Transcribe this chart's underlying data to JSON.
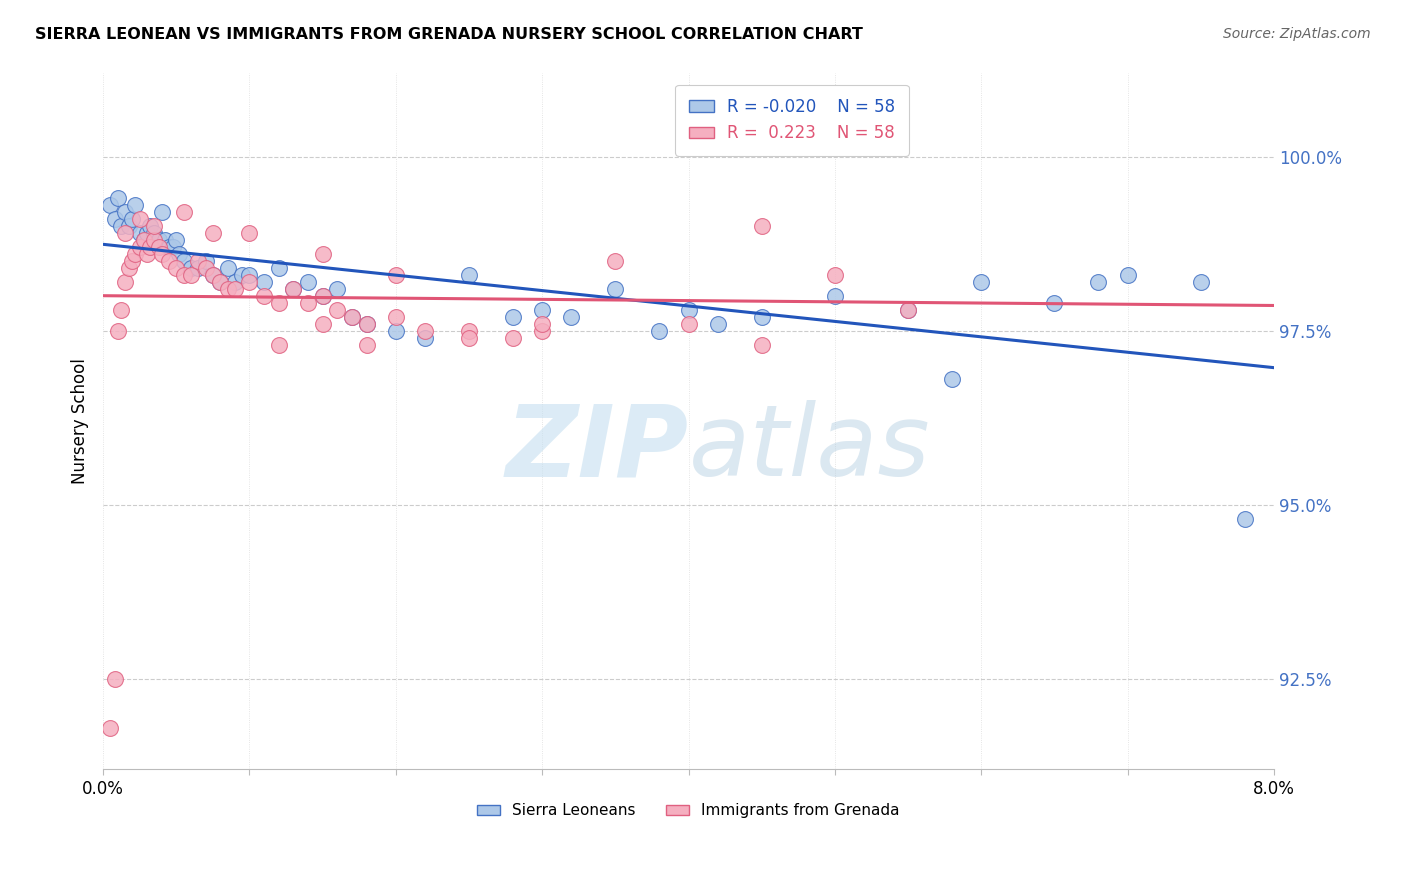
{
  "title": "SIERRA LEONEAN VS IMMIGRANTS FROM GRENADA NURSERY SCHOOL CORRELATION CHART",
  "source": "Source: ZipAtlas.com",
  "ylabel": "Nursery School",
  "yticks": [
    92.5,
    95.0,
    97.5,
    100.0
  ],
  "ytick_labels": [
    "92.5%",
    "95.0%",
    "97.5%",
    "100.0%"
  ],
  "xmin": 0.0,
  "xmax": 8.0,
  "ymin": 91.2,
  "ymax": 101.2,
  "blue_R": "-0.020",
  "blue_N": "58",
  "pink_R": "0.223",
  "pink_N": "58",
  "blue_color": "#adc8e8",
  "pink_color": "#f5afc0",
  "blue_edge_color": "#4472c4",
  "pink_edge_color": "#e06080",
  "blue_line_color": "#2255bb",
  "pink_line_color": "#e05575",
  "watermark_zip": "ZIP",
  "watermark_atlas": "atlas",
  "legend_blue_label": "Sierra Leoneans",
  "legend_pink_label": "Immigrants from Grenada",
  "blue_scatter_x": [
    0.05,
    0.08,
    0.1,
    0.12,
    0.15,
    0.18,
    0.2,
    0.22,
    0.25,
    0.28,
    0.3,
    0.32,
    0.35,
    0.38,
    0.4,
    0.42,
    0.45,
    0.48,
    0.5,
    0.52,
    0.55,
    0.6,
    0.65,
    0.7,
    0.75,
    0.8,
    0.85,
    0.9,
    0.95,
    1.0,
    1.1,
    1.2,
    1.3,
    1.4,
    1.5,
    1.6,
    1.7,
    1.8,
    2.0,
    2.2,
    2.5,
    2.8,
    3.0,
    3.2,
    3.5,
    3.8,
    4.0,
    4.2,
    4.5,
    5.0,
    5.5,
    5.8,
    6.0,
    6.5,
    6.8,
    7.0,
    7.5,
    7.8
  ],
  "blue_scatter_y": [
    99.3,
    99.1,
    99.4,
    99.0,
    99.2,
    99.0,
    99.1,
    99.3,
    98.9,
    98.8,
    98.9,
    99.0,
    98.9,
    98.8,
    99.2,
    98.8,
    98.7,
    98.7,
    98.8,
    98.6,
    98.5,
    98.4,
    98.4,
    98.5,
    98.3,
    98.2,
    98.4,
    98.2,
    98.3,
    98.3,
    98.2,
    98.4,
    98.1,
    98.2,
    98.0,
    98.1,
    97.7,
    97.6,
    97.5,
    97.4,
    98.3,
    97.7,
    97.8,
    97.7,
    98.1,
    97.5,
    97.8,
    97.6,
    97.7,
    98.0,
    97.8,
    96.8,
    98.2,
    97.9,
    98.2,
    98.3,
    98.2,
    94.8
  ],
  "pink_scatter_x": [
    0.05,
    0.08,
    0.1,
    0.12,
    0.15,
    0.18,
    0.2,
    0.22,
    0.25,
    0.28,
    0.3,
    0.32,
    0.35,
    0.38,
    0.4,
    0.45,
    0.5,
    0.55,
    0.6,
    0.65,
    0.7,
    0.75,
    0.8,
    0.85,
    0.9,
    1.0,
    1.1,
    1.2,
    1.3,
    1.4,
    1.5,
    1.6,
    1.7,
    1.8,
    2.0,
    2.2,
    2.5,
    2.8,
    3.0,
    3.5,
    4.0,
    4.5,
    5.0,
    5.5,
    0.15,
    0.25,
    0.35,
    0.55,
    0.75,
    1.0,
    1.5,
    2.0,
    3.0,
    1.5,
    1.8,
    2.5,
    1.2,
    4.5
  ],
  "pink_scatter_y": [
    91.8,
    92.5,
    97.5,
    97.8,
    98.2,
    98.4,
    98.5,
    98.6,
    98.7,
    98.8,
    98.6,
    98.7,
    98.8,
    98.7,
    98.6,
    98.5,
    98.4,
    98.3,
    98.3,
    98.5,
    98.4,
    98.3,
    98.2,
    98.1,
    98.1,
    98.2,
    98.0,
    97.9,
    98.1,
    97.9,
    98.0,
    97.8,
    97.7,
    97.6,
    97.7,
    97.5,
    97.5,
    97.4,
    97.5,
    98.5,
    97.6,
    97.3,
    98.3,
    97.8,
    98.9,
    99.1,
    99.0,
    99.2,
    98.9,
    98.9,
    98.6,
    98.3,
    97.6,
    97.6,
    97.3,
    97.4,
    97.3,
    99.0
  ]
}
